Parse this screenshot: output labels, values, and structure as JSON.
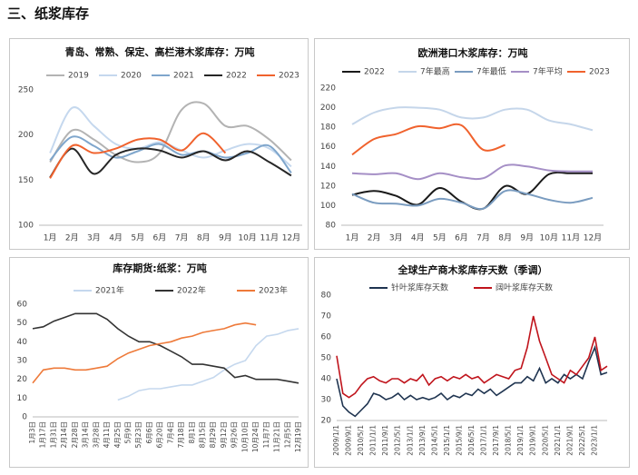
{
  "section_title": "三、纸浆库存",
  "chart_data": [
    {
      "type": "line",
      "smooth": true,
      "grid": false,
      "title": "青岛、常熟、保定、高栏港木浆库存：万吨",
      "categories": [
        "1月",
        "2月",
        "3月",
        "4月",
        "5月",
        "6月",
        "7月",
        "8月",
        "9月",
        "10月",
        "11月",
        "12月"
      ],
      "ylim": [
        100,
        250
      ],
      "yticks": [
        100,
        150,
        200,
        250
      ],
      "series": [
        {
          "name": "2019",
          "color": "#b3b3b3",
          "values": [
            170,
            205,
            195,
            178,
            170,
            180,
            228,
            235,
            210,
            210,
            195,
            172
          ]
        },
        {
          "name": "2020",
          "color": "#c5d8ee",
          "values": [
            180,
            230,
            210,
            190,
            185,
            192,
            183,
            175,
            183,
            190,
            185,
            165
          ]
        },
        {
          "name": "2021",
          "color": "#7fa6cc",
          "values": [
            172,
            198,
            188,
            175,
            182,
            190,
            178,
            182,
            175,
            180,
            188,
            158
          ]
        },
        {
          "name": "2022",
          "color": "#262626",
          "values": [
            153,
            185,
            157,
            178,
            185,
            183,
            175,
            182,
            172,
            182,
            170,
            155
          ]
        },
        {
          "name": "2023",
          "color": "#f0622d",
          "values": [
            152,
            188,
            180,
            185,
            195,
            195,
            183,
            202,
            180,
            null,
            null,
            null
          ]
        }
      ]
    },
    {
      "type": "line",
      "smooth": true,
      "grid": false,
      "title": "欧洲港口木浆库存：万吨",
      "categories": [
        "1月",
        "2月",
        "3月",
        "4月",
        "5月",
        "6月",
        "7月",
        "8月",
        "9月",
        "10月",
        "11月",
        "12月"
      ],
      "ylim": [
        80,
        220
      ],
      "yticks": [
        80,
        100,
        120,
        140,
        160,
        180,
        200,
        220
      ],
      "series": [
        {
          "name": "2022",
          "color": "#1a1a1a",
          "values": [
            111,
            115,
            110,
            101,
            118,
            104,
            97,
            120,
            112,
            132,
            133,
            133
          ]
        },
        {
          "name": "7年最高",
          "color": "#c5d6ea",
          "values": [
            183,
            195,
            200,
            200,
            198,
            190,
            190,
            198,
            198,
            187,
            183,
            177
          ]
        },
        {
          "name": "7年最低",
          "color": "#7a9cc0",
          "values": [
            112,
            103,
            102,
            100,
            107,
            103,
            97,
            115,
            112,
            106,
            103,
            108
          ]
        },
        {
          "name": "7年平均",
          "color": "#a58fc6",
          "values": [
            133,
            132,
            133,
            127,
            133,
            129,
            128,
            141,
            140,
            136,
            135,
            135
          ]
        },
        {
          "name": "2023",
          "color": "#f0622d",
          "values": [
            152,
            168,
            173,
            181,
            179,
            182,
            157,
            162,
            null,
            null,
            null,
            null
          ]
        }
      ]
    },
    {
      "type": "line",
      "smooth": false,
      "grid": false,
      "title": "库存期货:纸浆：万吨",
      "categories": [
        "1月3日",
        "1月17日",
        "1月31日",
        "2月14日",
        "2月28日",
        "3月14日",
        "3月28日",
        "4月11日",
        "4月25日",
        "5月9日",
        "5月23日",
        "6月6日",
        "6月20日",
        "7月4日",
        "7月18日",
        "8月1日",
        "8月15日",
        "8月29日",
        "9月12日",
        "9月26日",
        "10月10日",
        "10月24日",
        "11月7日",
        "11月21日",
        "12月5日",
        "12月19日"
      ],
      "ylim": [
        0,
        60
      ],
      "yticks": [
        0,
        10,
        20,
        30,
        40,
        50,
        60
      ],
      "series": [
        {
          "name": "2021年",
          "color": "#c5d8ee",
          "values": [
            null,
            null,
            null,
            null,
            null,
            null,
            null,
            null,
            9,
            11,
            14,
            15,
            15,
            16,
            17,
            17,
            19,
            21,
            25,
            28,
            30,
            38,
            43,
            44,
            46,
            47
          ]
        },
        {
          "name": "2022年",
          "color": "#333333",
          "values": [
            47,
            48,
            51,
            53,
            55,
            55,
            55,
            52,
            47,
            43,
            40,
            40,
            38,
            35,
            32,
            28,
            28,
            27,
            26,
            21,
            22,
            20,
            20,
            20,
            19,
            18
          ]
        },
        {
          "name": "2023年",
          "color": "#ee7a3a",
          "values": [
            18,
            25,
            26,
            26,
            25,
            25,
            26,
            27,
            31,
            34,
            36,
            38,
            39,
            40,
            42,
            43,
            45,
            46,
            47,
            49,
            50,
            49,
            null,
            null,
            null,
            null
          ]
        }
      ]
    },
    {
      "type": "line",
      "smooth": false,
      "grid": false,
      "title": "全球生产商木浆库存天数（季调）",
      "categories": [
        "2009/1/1",
        null,
        "2009/9/1",
        null,
        "2010/5/1",
        null,
        "2011/1/1",
        null,
        "2011/9/1",
        null,
        "2012/5/1",
        null,
        "2013/1/1",
        null,
        "2013/9/1",
        null,
        "2014/5/1",
        null,
        "2015/1/1",
        null,
        "2015/9/1",
        null,
        "2016/5/1",
        null,
        "2017/1/1",
        null,
        "2017/9/1",
        null,
        "2018/5/1",
        null,
        "2019/1/1",
        null,
        "2019/9/1",
        null,
        "2020/5/1",
        null,
        "2021/1/1",
        null,
        "2021/9/1",
        null,
        "2022/5/1",
        null,
        "2023/1/1",
        null,
        null
      ],
      "ylim": [
        20,
        80
      ],
      "yticks": [
        20,
        30,
        40,
        50,
        60,
        70,
        80
      ],
      "series": [
        {
          "name": "针叶浆库存天数",
          "color": "#1f3450",
          "values": [
            40,
            27,
            24,
            22,
            25,
            28,
            33,
            32,
            30,
            31,
            33,
            30,
            32,
            30,
            31,
            30,
            31,
            33,
            30,
            32,
            31,
            33,
            32,
            35,
            33,
            35,
            32,
            34,
            36,
            38,
            38,
            41,
            39,
            45,
            38,
            40,
            38,
            42,
            40,
            42,
            40,
            48,
            55,
            42,
            43
          ]
        },
        {
          "name": "阔叶浆库存天数",
          "color": "#c0141c",
          "values": [
            51,
            33,
            31,
            33,
            37,
            40,
            41,
            39,
            38,
            40,
            40,
            38,
            40,
            39,
            42,
            37,
            40,
            41,
            39,
            41,
            40,
            42,
            40,
            41,
            38,
            40,
            42,
            41,
            40,
            44,
            45,
            55,
            70,
            58,
            50,
            42,
            40,
            38,
            44,
            42,
            46,
            50,
            60,
            44,
            46
          ]
        }
      ]
    }
  ]
}
